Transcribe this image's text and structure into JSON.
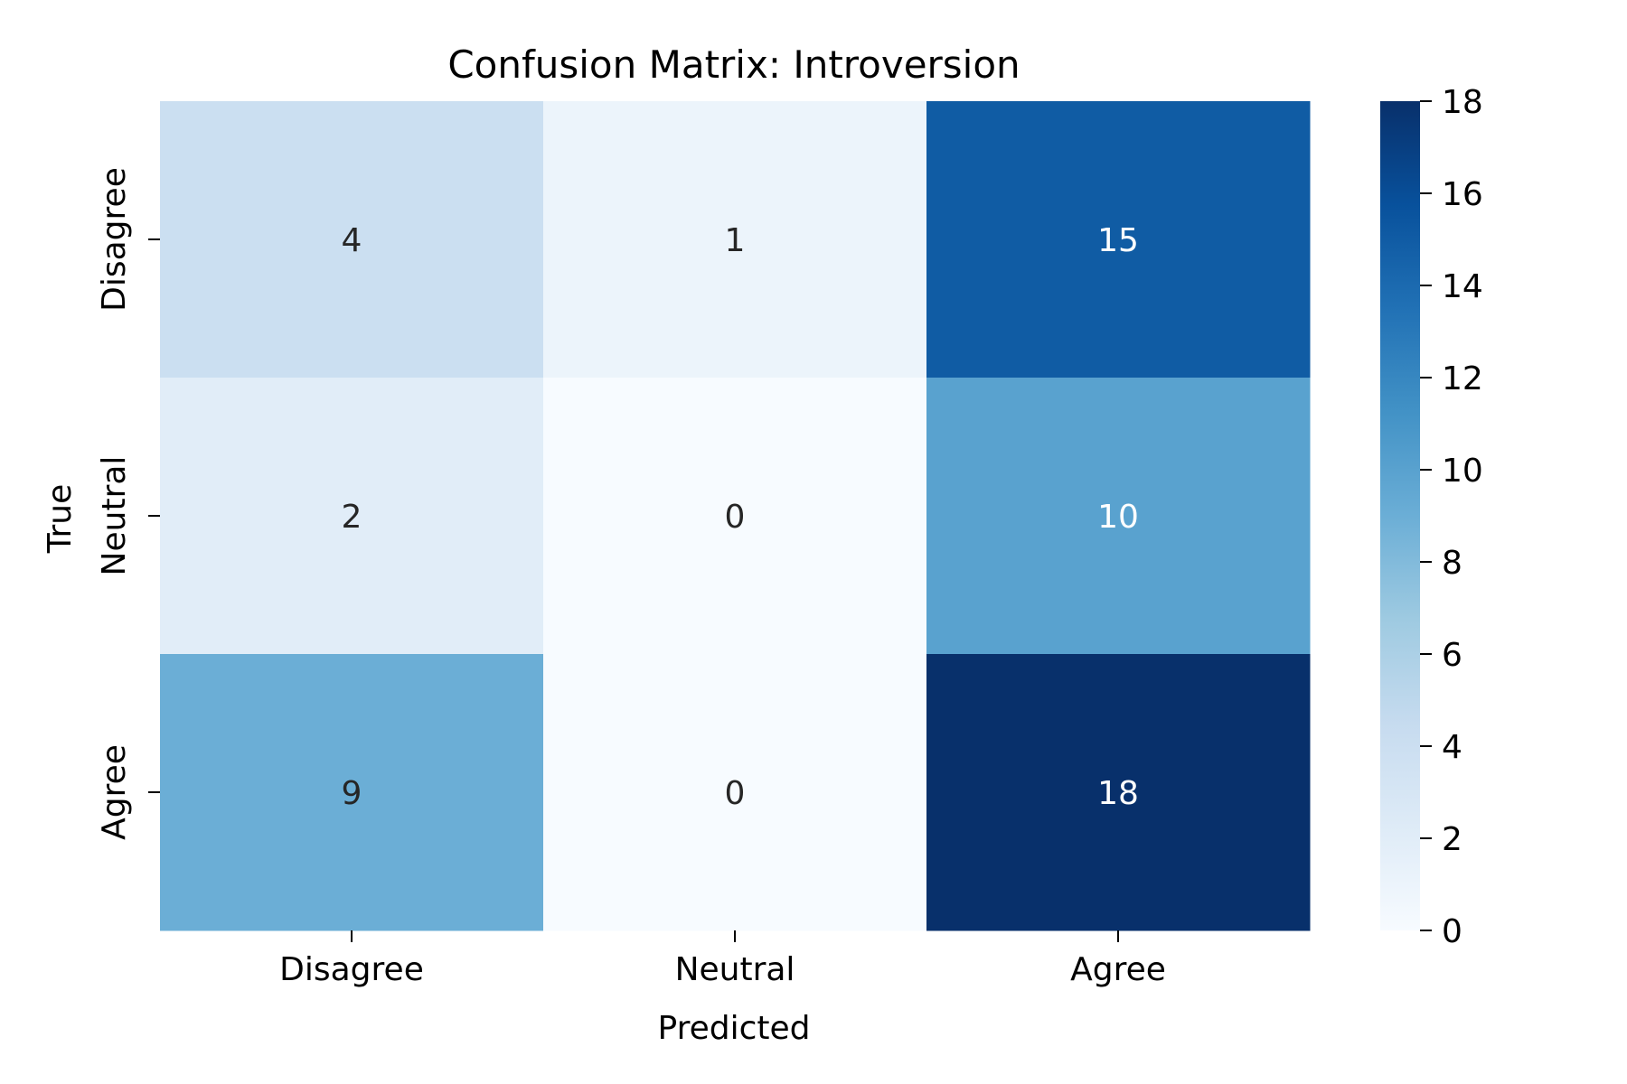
{
  "chart_data": {
    "type": "heatmap",
    "title": "Confusion Matrix: Introversion",
    "xlabel": "Predicted",
    "ylabel": "True",
    "x_categories": [
      "Disagree",
      "Neutral",
      "Agree"
    ],
    "y_categories": [
      "Disagree",
      "Neutral",
      "Agree"
    ],
    "values": [
      [
        4,
        1,
        15
      ],
      [
        2,
        0,
        10
      ],
      [
        9,
        0,
        18
      ]
    ],
    "colormap": "Blues",
    "vmin": 0,
    "vmax": 18,
    "colorbar_ticks": [
      "0",
      "2",
      "4",
      "6",
      "8",
      "10",
      "12",
      "14",
      "16",
      "18"
    ],
    "colors": {
      "scale": [
        "#f7fbff",
        "#deebf7",
        "#c6dbef",
        "#9ecae1",
        "#6baed6",
        "#4292c6",
        "#2171b5",
        "#08519c",
        "#08306b"
      ],
      "text_dark": "#262626",
      "text_light": "#ffffff"
    }
  }
}
